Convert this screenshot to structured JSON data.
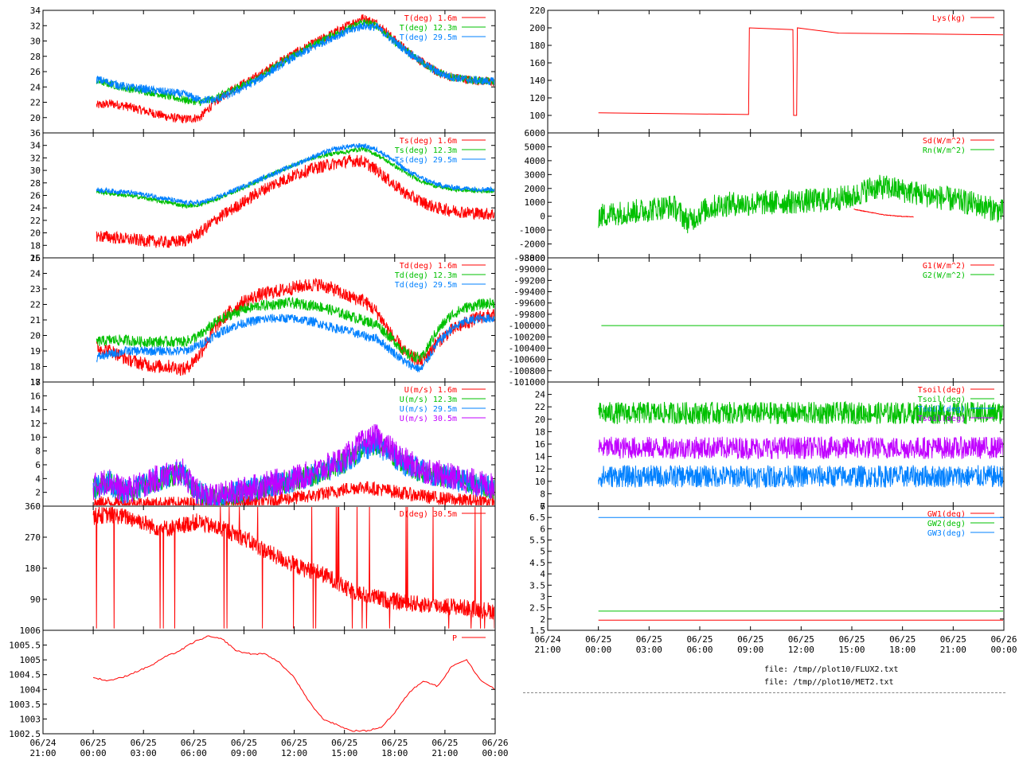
{
  "colors": {
    "red": "#ff0000",
    "green": "#00c000",
    "blue": "#0080ff",
    "purple": "#c000ff",
    "axis": "#000000",
    "background": "#ffffff"
  },
  "files": [
    "file: /tmp//plot10/FLUX2.txt",
    "file: /tmp//plot10/MET2.txt"
  ],
  "chart_data": [
    {
      "type": "line",
      "id": "T",
      "ylim": [
        18,
        34
      ],
      "yticks": [
        20,
        22,
        24,
        26,
        28,
        30,
        32,
        34
      ],
      "x": [
        0,
        1,
        2,
        3,
        4,
        5,
        6,
        7,
        8,
        9,
        10,
        11,
        12,
        13,
        14,
        15,
        16,
        17,
        18,
        19,
        20,
        21,
        22,
        23,
        24,
        25,
        26,
        27
      ],
      "series": [
        {
          "name": "T(deg)  1.6m",
          "color": "#ff0000",
          "noise": 0.6,
          "values": [
            21.6,
            21.8,
            21.5,
            21.0,
            20.5,
            20.0,
            19.8,
            20.0,
            22.0,
            23.5,
            24.5,
            25.5,
            26.8,
            28.0,
            29.0,
            30.0,
            31.0,
            32.0,
            33.0,
            32.3,
            30.5,
            28.8,
            27.3,
            26.0,
            25.3,
            25.0,
            24.8,
            24.6
          ]
        },
        {
          "name": "T(deg) 12.3m",
          "color": "#00c000",
          "noise": 0.5,
          "values": [
            24.8,
            24.3,
            23.8,
            23.5,
            23.2,
            22.7,
            22.3,
            22.0,
            22.5,
            23.5,
            24.3,
            25.2,
            26.5,
            27.8,
            28.8,
            29.8,
            30.8,
            31.5,
            32.5,
            32.0,
            30.2,
            28.7,
            27.3,
            26.0,
            25.3,
            25.0,
            24.8,
            24.7
          ]
        },
        {
          "name": "T(deg) 29.5m",
          "color": "#0080ff",
          "noise": 0.55,
          "values": [
            25.0,
            24.5,
            24.0,
            23.8,
            23.5,
            23.3,
            23.0,
            22.3,
            22.3,
            23.0,
            24.0,
            25.0,
            26.3,
            27.5,
            28.5,
            29.5,
            30.5,
            31.2,
            32.0,
            31.8,
            30.2,
            28.7,
            27.3,
            26.0,
            25.3,
            25.0,
            24.8,
            24.7
          ]
        }
      ]
    },
    {
      "type": "line",
      "id": "Ts",
      "ylim": [
        16,
        36
      ],
      "yticks": [
        16,
        18,
        20,
        22,
        24,
        26,
        28,
        30,
        32,
        34,
        36
      ],
      "x": [
        0,
        1,
        2,
        3,
        4,
        5,
        6,
        7,
        8,
        9,
        10,
        11,
        12,
        13,
        14,
        15,
        16,
        17,
        18,
        19,
        20,
        21,
        22,
        23,
        24,
        25,
        26,
        27
      ],
      "series": [
        {
          "name": "Ts(deg)  1.6m",
          "color": "#ff0000",
          "noise": 1.0,
          "values": [
            19.5,
            19.3,
            19.0,
            18.8,
            18.6,
            18.5,
            18.8,
            20.0,
            22.0,
            23.5,
            25.0,
            26.5,
            27.8,
            28.8,
            29.8,
            30.5,
            31.0,
            31.5,
            31.5,
            30.0,
            28.0,
            26.2,
            25.0,
            24.0,
            23.6,
            23.3,
            23.1,
            23.0
          ]
        },
        {
          "name": "Ts(deg) 12.3m",
          "color": "#00c000",
          "noise": 0.35,
          "values": [
            26.6,
            26.3,
            26.0,
            25.7,
            25.2,
            24.8,
            24.3,
            24.5,
            25.3,
            26.3,
            27.3,
            28.3,
            29.5,
            30.5,
            31.5,
            32.2,
            32.7,
            33.0,
            33.5,
            32.5,
            31.0,
            29.5,
            28.3,
            27.5,
            27.0,
            26.8,
            26.7,
            26.7
          ]
        },
        {
          "name": "Ts(deg) 29.5m",
          "color": "#0080ff",
          "noise": 0.4,
          "values": [
            26.9,
            26.7,
            26.5,
            26.2,
            25.8,
            25.3,
            24.8,
            24.8,
            25.5,
            26.5,
            27.5,
            28.5,
            29.5,
            30.5,
            31.5,
            32.5,
            33.3,
            33.8,
            34.0,
            33.3,
            31.8,
            30.0,
            28.8,
            27.8,
            27.3,
            27.1,
            27.0,
            27.0
          ]
        }
      ]
    },
    {
      "type": "line",
      "id": "Td",
      "ylim": [
        17,
        25
      ],
      "yticks": [
        17,
        18,
        19,
        20,
        21,
        22,
        23,
        24,
        25
      ],
      "x": [
        0,
        1,
        2,
        3,
        4,
        5,
        6,
        7,
        8,
        9,
        10,
        11,
        12,
        13,
        14,
        15,
        16,
        17,
        18,
        19,
        20,
        21,
        22,
        23,
        24,
        25,
        26,
        27
      ],
      "series": [
        {
          "name": "Td(deg)  1.6m",
          "color": "#ff0000",
          "noise": 0.45,
          "values": [
            19.2,
            19.0,
            18.5,
            18.2,
            18.0,
            18.0,
            17.8,
            18.8,
            20.5,
            21.5,
            22.2,
            22.6,
            22.8,
            23.0,
            23.2,
            23.3,
            23.0,
            22.5,
            22.3,
            21.5,
            20.0,
            18.8,
            18.3,
            19.5,
            20.3,
            20.8,
            21.2,
            21.3
          ]
        },
        {
          "name": "Td(deg) 12.3m",
          "color": "#00c000",
          "noise": 0.35,
          "values": [
            19.6,
            19.7,
            19.7,
            19.6,
            19.6,
            19.6,
            19.6,
            20.0,
            20.8,
            21.3,
            21.7,
            21.9,
            22.0,
            22.1,
            22.0,
            21.9,
            21.6,
            21.3,
            21.0,
            20.7,
            19.8,
            18.8,
            18.5,
            20.2,
            21.3,
            21.8,
            22.0,
            22.1
          ]
        },
        {
          "name": "Td(deg) 29.5m",
          "color": "#0080ff",
          "noise": 0.3,
          "values": [
            18.6,
            18.8,
            19.0,
            19.0,
            19.0,
            19.0,
            19.0,
            19.4,
            20.0,
            20.5,
            20.8,
            21.0,
            21.1,
            21.1,
            21.0,
            20.8,
            20.5,
            20.3,
            20.0,
            19.8,
            19.0,
            18.2,
            17.8,
            19.4,
            20.4,
            20.9,
            21.1,
            21.1
          ]
        }
      ]
    },
    {
      "type": "line",
      "id": "U",
      "ylim": [
        0,
        18
      ],
      "yticks": [
        2,
        4,
        6,
        8,
        10,
        12,
        14,
        16,
        18
      ],
      "x": [
        0,
        1,
        2,
        3,
        4,
        5,
        6,
        7,
        8,
        9,
        10,
        11,
        12,
        13,
        14,
        15,
        16,
        17,
        18,
        19,
        20,
        21,
        22,
        23,
        24,
        25,
        26,
        27
      ],
      "series": [
        {
          "name": "U(m/s)  1.6m",
          "color": "#ff0000",
          "noise": 1.0,
          "values": [
            0.4,
            0.5,
            0.4,
            0.4,
            0.3,
            0.4,
            0.4,
            0.4,
            0.5,
            0.5,
            0.6,
            0.7,
            0.9,
            1.1,
            1.3,
            1.6,
            2.0,
            2.5,
            2.8,
            2.5,
            2.2,
            1.8,
            1.5,
            1.2,
            1.0,
            0.8,
            0.8,
            0.7
          ]
        },
        {
          "name": "U(m/s) 12.3m",
          "color": "#00c000",
          "noise": 1.6,
          "values": [
            2.5,
            3.5,
            2.0,
            2.5,
            3.5,
            4.2,
            4.8,
            2.0,
            1.0,
            1.5,
            2.0,
            2.5,
            3.0,
            3.5,
            4.0,
            4.5,
            5.5,
            6.5,
            8.0,
            9.0,
            7.5,
            6.0,
            5.0,
            4.5,
            4.0,
            3.5,
            3.0,
            2.5
          ]
        },
        {
          "name": "U(m/s) 29.5m",
          "color": "#0080ff",
          "noise": 1.8,
          "values": [
            2.6,
            3.6,
            2.1,
            2.6,
            3.6,
            4.3,
            4.9,
            2.1,
            1.1,
            1.6,
            2.1,
            2.6,
            3.1,
            3.6,
            4.1,
            4.6,
            5.6,
            6.6,
            8.1,
            9.1,
            7.6,
            6.1,
            5.1,
            4.6,
            4.1,
            3.6,
            3.1,
            2.6
          ]
        },
        {
          "name": "U(m/s) 30.5m",
          "color": "#c000ff",
          "noise": 2.0,
          "values": [
            2.8,
            3.8,
            2.2,
            2.8,
            3.8,
            4.5,
            5.0,
            2.0,
            1.2,
            1.8,
            2.3,
            2.8,
            3.3,
            3.8,
            4.3,
            5.0,
            6.0,
            7.2,
            9.0,
            10.0,
            8.2,
            6.5,
            5.4,
            4.8,
            4.3,
            3.8,
            3.2,
            2.8
          ]
        }
      ]
    },
    {
      "type": "line",
      "id": "D",
      "ylim": [
        0,
        360
      ],
      "yticks": [
        90,
        180,
        270,
        360
      ],
      "x": [
        0,
        1,
        2,
        3,
        4,
        5,
        6,
        7,
        8,
        9,
        10,
        11,
        12,
        13,
        14,
        15,
        16,
        17,
        18,
        19,
        20,
        21,
        22,
        23,
        24,
        25,
        26,
        27
      ],
      "series": [
        {
          "name": "D(deg)  30.5m",
          "color": "#ff0000",
          "noise": 25,
          "values": [
            330,
            335,
            330,
            320,
            300,
            295,
            305,
            315,
            300,
            290,
            270,
            245,
            220,
            200,
            180,
            170,
            150,
            120,
            105,
            95,
            85,
            80,
            75,
            72,
            70,
            65,
            60,
            55
          ]
        }
      ]
    },
    {
      "type": "line",
      "id": "P",
      "ylim": [
        1002.5,
        1006
      ],
      "yticks": [
        1002.5,
        1003,
        1003.5,
        1004,
        1004.5,
        1005,
        1005.5,
        1006
      ],
      "x": [
        0,
        2,
        4,
        6,
        8,
        10,
        12,
        14,
        16,
        18,
        20,
        22,
        24,
        26,
        28,
        30,
        32,
        34,
        36,
        38,
        40,
        42,
        44,
        46,
        48,
        50,
        52,
        54,
        56
      ],
      "series": [
        {
          "name": "P",
          "color": "#ff0000",
          "noise": 0.02,
          "values": [
            1004.4,
            1004.3,
            1004.4,
            1004.6,
            1004.8,
            1005.1,
            1005.3,
            1005.6,
            1005.8,
            1005.7,
            1005.3,
            1005.2,
            1005.2,
            1004.9,
            1004.4,
            1003.6,
            1003.0,
            1002.8,
            1002.6,
            1002.6,
            1002.7,
            1003.2,
            1003.9,
            1004.3,
            1004.1,
            1004.8,
            1005.0,
            1004.3,
            1004.0
          ]
        }
      ]
    },
    {
      "type": "line",
      "id": "Lys",
      "ylim": [
        80,
        220
      ],
      "yticks": [
        100,
        120,
        140,
        160,
        180,
        200,
        220
      ],
      "series": [
        {
          "name": "Lys(kg)",
          "color": "#ff0000",
          "noise": 0,
          "points": [
            [
              0,
              103
            ],
            [
              10,
              101
            ],
            [
              10.05,
              200
            ],
            [
              12.95,
              198
            ],
            [
              13.0,
              100
            ],
            [
              13.2,
              100
            ],
            [
              13.25,
              200
            ],
            [
              16,
              194
            ],
            [
              27,
              192
            ]
          ]
        }
      ]
    },
    {
      "type": "line",
      "id": "Sd",
      "ylim": [
        -3000,
        6000
      ],
      "yticks": [
        -3000,
        -2000,
        -1000,
        0,
        1000,
        2000,
        3000,
        4000,
        5000,
        6000
      ],
      "x": [
        0,
        1,
        2,
        3,
        4,
        5,
        6,
        7,
        8,
        9,
        10,
        11,
        12,
        13,
        14,
        15,
        16,
        17,
        18,
        19,
        20,
        21,
        22,
        23,
        24,
        25,
        26,
        27
      ],
      "series": [
        {
          "name": "Sd(W/m^2)",
          "color": "#ff0000",
          "noise": 20,
          "values": [
            null,
            null,
            null,
            null,
            null,
            null,
            null,
            null,
            null,
            null,
            null,
            null,
            null,
            null,
            null,
            null,
            null,
            500,
            300,
            100,
            0,
            -50,
            null,
            null,
            null,
            null,
            null,
            null
          ]
        },
        {
          "name": "Rn(W/m^2)",
          "color": "#00c000",
          "noise": 900,
          "values": [
            0,
            200,
            300,
            400,
            600,
            700,
            -400,
            400,
            800,
            900,
            900,
            950,
            1000,
            1050,
            1100,
            1150,
            1300,
            1400,
            2000,
            2100,
            1900,
            1700,
            1500,
            1300,
            1100,
            900,
            600,
            300
          ]
        }
      ]
    },
    {
      "type": "line",
      "id": "G",
      "ylim": [
        -101000,
        -98800
      ],
      "yticks": [
        -101000,
        -100800,
        -100600,
        -100400,
        -100200,
        -100000,
        -99800,
        -99600,
        -99400,
        -99200,
        -99000,
        -98800
      ],
      "series": [
        {
          "name": "G1(W/m^2)",
          "color": "#ff0000",
          "noise": 0,
          "points": []
        },
        {
          "name": "G2(W/m^2)",
          "color": "#00c000",
          "noise": 0,
          "points": [
            [
              0.2,
              -100000
            ],
            [
              27,
              -100000
            ]
          ]
        }
      ]
    },
    {
      "type": "line",
      "id": "Tsoil",
      "ylim": [
        6,
        26
      ],
      "yticks": [
        6,
        8,
        10,
        12,
        14,
        16,
        18,
        20,
        22,
        24
      ],
      "x": [
        0,
        27
      ],
      "series": [
        {
          "name": "Tsoil(deg)",
          "color": "#ff0000",
          "noise": 0,
          "values": [
            null,
            null
          ]
        },
        {
          "name": "Tsoil(deg)",
          "color": "#00c000",
          "noise": 1.8,
          "values": [
            21.0,
            21.0
          ]
        },
        {
          "name": "Tsoil(deg)",
          "color": "#0080ff",
          "noise": 1.8,
          "values": [
            10.8,
            10.8
          ]
        },
        {
          "name": "Tsoil(deg)",
          "color": "#c000ff",
          "noise": 1.8,
          "values": [
            15.4,
            15.4
          ]
        }
      ]
    },
    {
      "type": "line",
      "id": "GW",
      "ylim": [
        1.5,
        7
      ],
      "yticks": [
        1.5,
        2,
        2.5,
        3,
        3.5,
        4,
        4.5,
        5,
        5.5,
        6,
        6.5,
        7
      ],
      "series": [
        {
          "name": "GW1(deg)",
          "color": "#ff0000",
          "noise": 0,
          "points": [
            [
              0,
              1.95
            ],
            [
              27,
              1.95
            ]
          ]
        },
        {
          "name": "GW2(deg)",
          "color": "#00c000",
          "noise": 0,
          "points": [
            [
              0,
              2.35
            ],
            [
              27,
              2.35
            ]
          ]
        },
        {
          "name": "GW3(deg)",
          "color": "#0080ff",
          "noise": 0,
          "points": [
            [
              0,
              6.5
            ],
            [
              27,
              6.5
            ]
          ]
        }
      ]
    }
  ],
  "x_axis_labels": [
    {
      "date": "06/24",
      "time": "21:00"
    },
    {
      "date": "06/25",
      "time": "00:00"
    },
    {
      "date": "06/25",
      "time": "03:00"
    },
    {
      "date": "06/25",
      "time": "06:00"
    },
    {
      "date": "06/25",
      "time": "09:00"
    },
    {
      "date": "06/25",
      "time": "12:00"
    },
    {
      "date": "06/25",
      "time": "15:00"
    },
    {
      "date": "06/25",
      "time": "18:00"
    },
    {
      "date": "06/25",
      "time": "21:00"
    },
    {
      "date": "06/26",
      "time": "00:00"
    }
  ]
}
